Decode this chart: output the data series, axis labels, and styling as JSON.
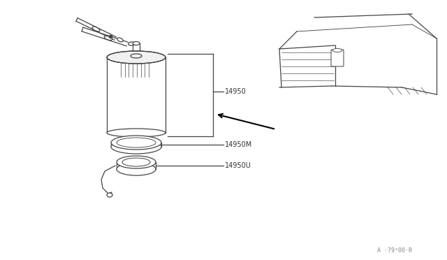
{
  "background_color": "#ffffff",
  "line_color": "#444444",
  "text_color": "#333333",
  "label_14950": "14950",
  "label_14950M": "14950M",
  "label_14950U": "14950U",
  "watermark": "A ·79³00·R",
  "fig_width": 6.4,
  "fig_height": 3.72,
  "dpi": 100
}
